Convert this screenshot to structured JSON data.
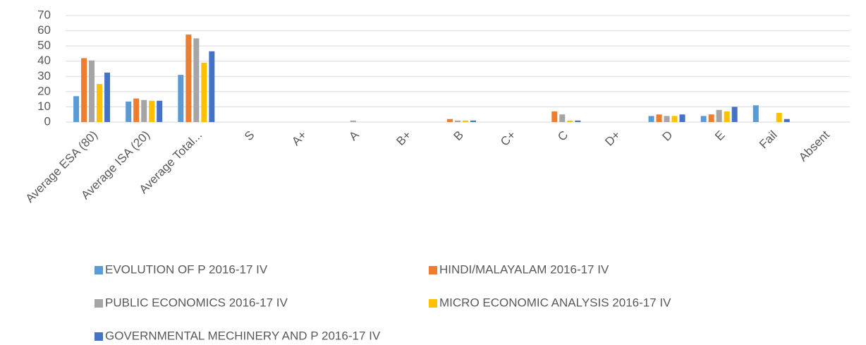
{
  "chart_data": {
    "type": "bar",
    "categories": [
      "Average ESA (80)",
      "Average ISA (20)",
      "Average Total...",
      "S",
      "A+",
      "A",
      "B+",
      "B",
      "C+",
      "C",
      "D+",
      "D",
      "E",
      "Fail",
      "Absent"
    ],
    "series": [
      {
        "name": "EVOLUTION OF P 2016-17 IV",
        "color": "#5b9bd5",
        "values": [
          17,
          13.5,
          31,
          0,
          0,
          0,
          0,
          0,
          0,
          0,
          0,
          4,
          4,
          11,
          0
        ]
      },
      {
        "name": "HINDI/MALAYALAM 2016-17 IV",
        "color": "#ed7d31",
        "values": [
          42,
          15.5,
          57.5,
          0,
          0,
          0,
          0,
          2,
          0,
          7,
          0,
          5,
          5,
          0,
          0
        ]
      },
      {
        "name": "PUBLIC ECONOMICS 2016-17 IV",
        "color": "#a5a5a5",
        "values": [
          40.5,
          14.5,
          55,
          0,
          0,
          1,
          0,
          1,
          0,
          5,
          0,
          4,
          8,
          0,
          0
        ]
      },
      {
        "name": "MICRO ECONOMIC ANALYSIS 2016-17 IV",
        "color": "#ffc000",
        "values": [
          25,
          14,
          39,
          0,
          0,
          0,
          0,
          1,
          0,
          1,
          0,
          4,
          7,
          6,
          0
        ]
      },
      {
        "name": "GOVERNMENTAL MECHINERY AND P 2016-17 IV",
        "color": "#4472c4",
        "values": [
          32.5,
          14,
          46.5,
          0,
          0,
          0,
          0,
          1,
          0,
          1,
          0,
          5,
          10,
          2,
          0
        ]
      }
    ],
    "ylim": [
      0,
      70
    ],
    "yticks": [
      0,
      10,
      20,
      30,
      40,
      50,
      60,
      70
    ],
    "grid": true,
    "legend": "bottom"
  }
}
